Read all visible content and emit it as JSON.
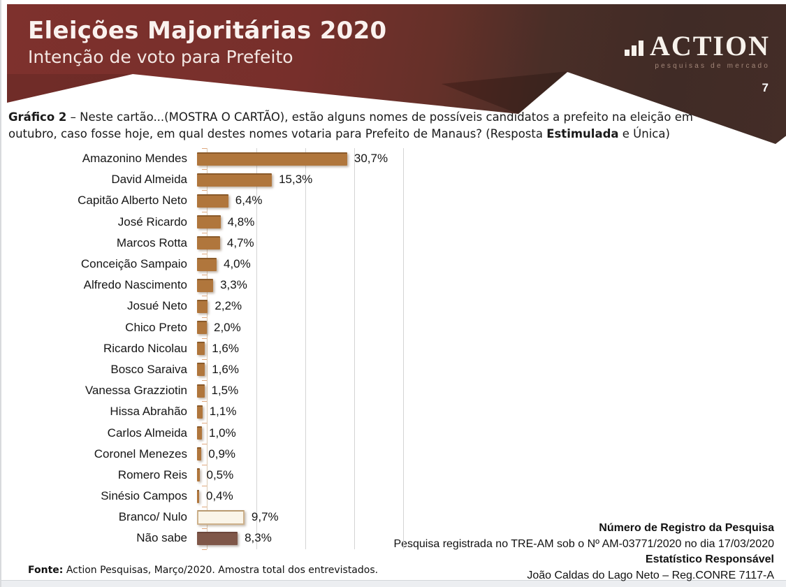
{
  "header": {
    "title": "Eleições Majoritárias 2020",
    "subtitle": "Intenção de voto para Prefeito",
    "page_number": "7",
    "logo": {
      "name": "ACTION",
      "tagline": "pesquisas de mercado",
      "icon": "bar-chart-icon"
    },
    "colors": {
      "maroon": "#7b2e2a",
      "dark_brown": "#402b26"
    }
  },
  "question": {
    "label_bold": "Gráfico 2",
    "line1_rest": " – Neste cartão...(MOSTRA O CARTÃO), estão alguns nomes de possíveis candidatos a prefeito na eleição em",
    "line2_pre": "outubro, caso fosse hoje, em qual destes nomes votaria para Prefeito de Manaus? (Resposta ",
    "emphasis_bold": "Estimulada",
    "line2_post": " e Única)"
  },
  "chart_data": {
    "type": "bar",
    "orientation": "horizontal",
    "title": "Intenção de voto para Prefeito de Manaus (estimulada)",
    "unit": "%",
    "xlim": [
      0,
      40
    ],
    "gridlines_every_percent": 10,
    "grid": true,
    "legend": "none",
    "categories": [
      "Amazonino Mendes",
      "David Almeida",
      "Capitão Alberto Neto",
      "José Ricardo",
      "Marcos Rotta",
      "Conceição Sampaio",
      "Alfredo Nascimento",
      "Josué Neto",
      "Chico Preto",
      "Ricardo Nicolau",
      "Bosco Saraiva",
      "Vanessa Grazziotin",
      "Hissa Abrahão",
      "Carlos Almeida",
      "Coronel Menezes",
      "Romero Reis",
      "Sinésio Campos",
      "Branco/ Nulo",
      "Não sabe"
    ],
    "values": [
      30.7,
      15.3,
      6.4,
      4.8,
      4.7,
      4.0,
      3.3,
      2.2,
      2.0,
      1.6,
      1.6,
      1.5,
      1.1,
      1.0,
      0.9,
      0.5,
      0.4,
      9.7,
      8.3
    ],
    "value_labels": [
      "30,7%",
      "15,3%",
      "6,4%",
      "4,8%",
      "4,7%",
      "4,0%",
      "3,3%",
      "2,2%",
      "2,0%",
      "1,6%",
      "1,6%",
      "1,5%",
      "1,1%",
      "1,0%",
      "0,9%",
      "0,5%",
      "0,4%",
      "9,7%",
      "8,3%"
    ],
    "bar_styles": [
      "normal",
      "normal",
      "normal",
      "normal",
      "normal",
      "normal",
      "normal",
      "normal",
      "normal",
      "normal",
      "normal",
      "normal",
      "normal",
      "normal",
      "normal",
      "normal",
      "normal",
      "blank",
      "dark"
    ],
    "bar_color": "#b0763c",
    "blank_bar_color": "#faf5e9",
    "dark_bar_color": "#7f5749"
  },
  "footer": {
    "fonte_bold": "Fonte:",
    "fonte_text": " Action Pesquisas, Março/2020. Amostra total dos entrevistados.",
    "registro_title": "Número de Registro da Pesquisa",
    "registro_text": "Pesquisa registrada no TRE-AM sob o Nº AM-03771/2020 no dia 17/03/2020",
    "estatistico_title": "Estatístico Responsável",
    "estatistico_text": "João Caldas do Lago Neto – Reg.CONRE 7117-A"
  }
}
